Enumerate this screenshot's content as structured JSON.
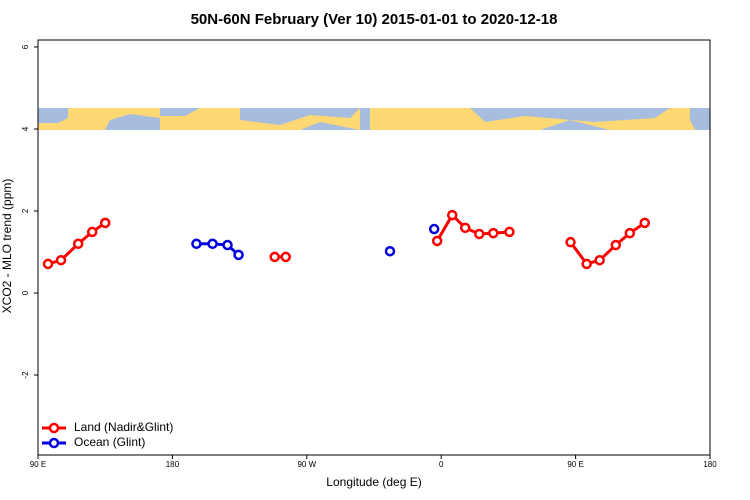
{
  "chart_data": {
    "type": "line",
    "title": "50N-60N February (Ver 10)   2015-01-01 to 2020-12-18",
    "x_label": "Longitude (deg E)",
    "y_label": "XCO2 - MLO trend (ppm)",
    "xlim": [
      90,
      540
    ],
    "xticks": [
      {
        "value": 90,
        "label": "90 E"
      },
      {
        "value": 180,
        "label": "180"
      },
      {
        "value": 270,
        "label": "90 W"
      },
      {
        "value": 360,
        "label": "0"
      },
      {
        "value": 450,
        "label": "90 E"
      },
      {
        "value": 540,
        "label": "180"
      }
    ],
    "ylim": [
      -3.95,
      6.17
    ],
    "yticks": [
      -2,
      0,
      2,
      4,
      6
    ],
    "legend": "bottom-left",
    "series": [
      {
        "name": "Land (Nadir&Glint)",
        "color": "#ff0000",
        "x": [
          96.7,
          105.4,
          116.9,
          126.3,
          135.0,
          null,
          248.5,
          255.9,
          null,
          357.3,
          367.4,
          376.1,
          385.5,
          394.9,
          405.7,
          null,
          446.6,
          457.4,
          466.1,
          476.9,
          486.3,
          496.3
        ],
        "values": [
          0.71,
          0.8,
          1.2,
          1.49,
          1.71,
          null,
          0.88,
          0.88,
          null,
          1.27,
          1.9,
          1.59,
          1.44,
          1.46,
          1.49,
          null,
          1.24,
          0.71,
          0.8,
          1.17,
          1.46,
          1.71
        ]
      },
      {
        "name": "Ocean (Glint)",
        "color": "#0000dd",
        "x": [
          196.1,
          206.9,
          216.9,
          224.3,
          null,
          325.7,
          null,
          355.3
        ],
        "values": [
          1.2,
          1.2,
          1.17,
          0.93,
          null,
          1.02,
          null,
          1.56
        ]
      }
    ]
  }
}
